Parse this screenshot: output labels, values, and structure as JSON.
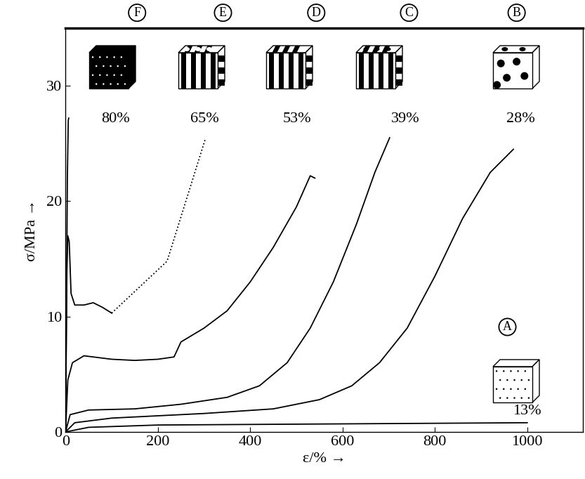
{
  "chart_data": {
    "type": "line",
    "x_label": "ε/% →",
    "y_label": "σ/MPa →",
    "xlim": [
      0,
      1120
    ],
    "ylim": [
      0,
      35
    ],
    "xticks": [
      0,
      200,
      400,
      600,
      800,
      1000
    ],
    "yticks": [
      0,
      10,
      20,
      30
    ],
    "grid": false,
    "series": [
      {
        "name": "A",
        "annotation": "13%",
        "color": "#000000",
        "line_style": "solid",
        "x": [
          0,
          50,
          200,
          600,
          1000
        ],
        "values": [
          0,
          0.4,
          0.6,
          0.7,
          0.8
        ]
      },
      {
        "name": "B",
        "annotation": "28%",
        "color": "#000000",
        "line_style": "solid",
        "x": [
          0,
          20,
          100,
          300,
          450,
          550,
          620,
          680,
          740,
          800,
          860,
          920,
          970
        ],
        "values": [
          0,
          0.8,
          1.2,
          1.6,
          2.0,
          2.8,
          4,
          6,
          9,
          13.5,
          18.5,
          22.5,
          24.5
        ]
      },
      {
        "name": "C",
        "annotation": "39%",
        "color": "#000000",
        "line_style": "solid",
        "x": [
          0,
          10,
          50,
          150,
          250,
          350,
          420,
          480,
          530,
          580,
          630,
          670,
          702
        ],
        "values": [
          0,
          1.5,
          1.9,
          2.0,
          2.4,
          3.0,
          4,
          6,
          9,
          13,
          18,
          22.5,
          25.5
        ]
      },
      {
        "name": "D",
        "annotation": "53%",
        "color": "#000000",
        "line_style": "solid",
        "x": [
          0,
          5,
          15,
          40,
          100,
          150,
          200,
          235,
          250,
          300,
          350,
          400,
          450,
          500,
          530,
          540
        ],
        "values": [
          0,
          4.5,
          6,
          6.6,
          6.3,
          6.2,
          6.3,
          6.5,
          7.8,
          9,
          10.5,
          13,
          16,
          19.5,
          22.2,
          22
        ]
      },
      {
        "name": "E",
        "annotation": "65%",
        "color": "#000000",
        "line_style": "solid",
        "x": [
          0,
          3,
          5,
          8,
          12,
          20,
          40,
          60,
          80,
          100
        ],
        "values": [
          0,
          14,
          17,
          16.5,
          12,
          11,
          11,
          11.2,
          10.8,
          10.3
        ]
      },
      {
        "name": "E",
        "color": "#000000",
        "line_style": "dotted",
        "x": [
          100,
          220,
          302
        ],
        "values": [
          10.3,
          14.8,
          25.3
        ]
      },
      {
        "name": "F",
        "annotation": "80%",
        "color": "#000000",
        "line_style": "solid",
        "x": [
          0,
          2,
          4,
          6,
          7
        ],
        "values": [
          0,
          10,
          22,
          27,
          27.2
        ]
      }
    ]
  }
}
